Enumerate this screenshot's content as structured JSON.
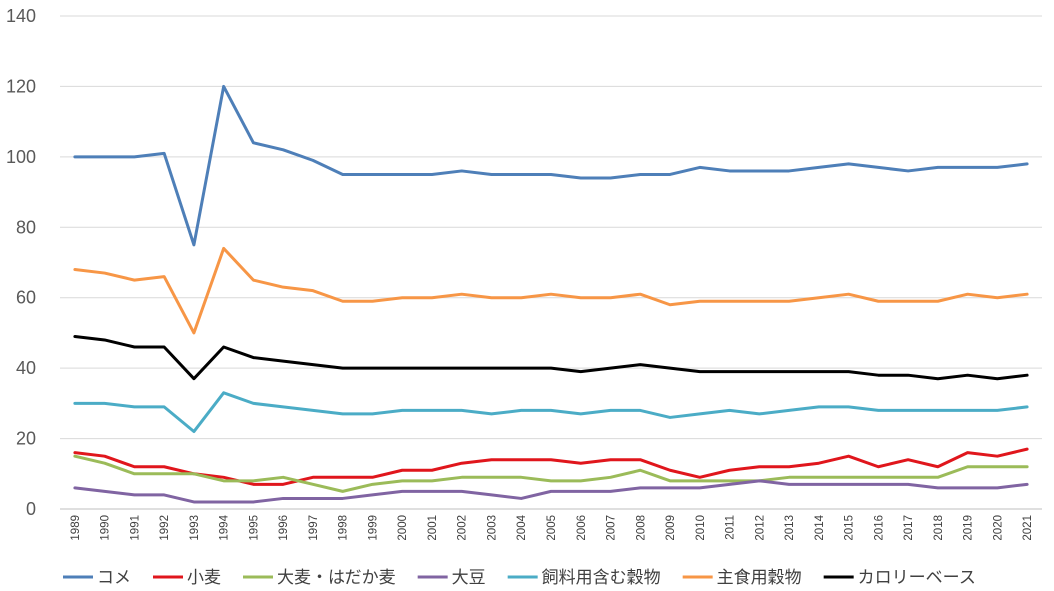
{
  "chart_data": {
    "type": "line",
    "title": "",
    "xlabel": "",
    "ylabel": "",
    "ylim": [
      0,
      140
    ],
    "yticks": [
      "0",
      "20",
      "40",
      "60",
      "80",
      "100",
      "120",
      "140"
    ],
    "grid": "horizontal",
    "legend_position": "bottom",
    "x": [
      "1989",
      "1990",
      "1991",
      "1992",
      "1993",
      "1994",
      "1995",
      "1996",
      "1997",
      "1998",
      "1999",
      "2000",
      "2001",
      "2002",
      "2003",
      "2004",
      "2005",
      "2006",
      "2007",
      "2008",
      "2009",
      "2010",
      "2011",
      "2012",
      "2013",
      "2014",
      "2015",
      "2016",
      "2017",
      "2018",
      "2019",
      "2020",
      "2021"
    ],
    "series": [
      {
        "name": "コメ",
        "color": "#4E7FB8",
        "values": [
          100,
          100,
          100,
          101,
          75,
          120,
          104,
          102,
          99,
          95,
          95,
          95,
          95,
          96,
          95,
          95,
          95,
          94,
          94,
          95,
          95,
          97,
          96,
          96,
          96,
          97,
          98,
          97,
          96,
          97,
          97,
          97,
          98
        ]
      },
      {
        "name": "小麦",
        "color": "#E0161C",
        "values": [
          16,
          15,
          12,
          12,
          10,
          9,
          7,
          7,
          9,
          9,
          9,
          11,
          11,
          13,
          14,
          14,
          14,
          13,
          14,
          14,
          11,
          9,
          11,
          12,
          12,
          13,
          15,
          12,
          14,
          12,
          16,
          15,
          17
        ]
      },
      {
        "name": "大麦・はだか麦",
        "color": "#9BBB59",
        "values": [
          15,
          13,
          10,
          10,
          10,
          8,
          8,
          9,
          7,
          5,
          7,
          8,
          8,
          9,
          9,
          9,
          8,
          8,
          9,
          11,
          8,
          8,
          8,
          8,
          9,
          9,
          9,
          9,
          9,
          9,
          12,
          12,
          12
        ]
      },
      {
        "name": "大豆",
        "color": "#8064A2",
        "values": [
          6,
          5,
          4,
          4,
          2,
          2,
          2,
          3,
          3,
          3,
          4,
          5,
          5,
          5,
          4,
          3,
          5,
          5,
          5,
          6,
          6,
          6,
          7,
          8,
          7,
          7,
          7,
          7,
          7,
          6,
          6,
          6,
          7
        ]
      },
      {
        "name": "飼料用含む穀物",
        "color": "#4BACC6",
        "values": [
          30,
          30,
          29,
          29,
          22,
          33,
          30,
          29,
          28,
          27,
          27,
          28,
          28,
          28,
          27,
          28,
          28,
          27,
          28,
          28,
          26,
          27,
          28,
          27,
          28,
          29,
          29,
          28,
          28,
          28,
          28,
          28,
          29
        ]
      },
      {
        "name": "主食用穀物",
        "color": "#F79646",
        "values": [
          68,
          67,
          65,
          66,
          50,
          74,
          65,
          63,
          62,
          59,
          59,
          60,
          60,
          61,
          60,
          60,
          61,
          60,
          60,
          61,
          58,
          59,
          59,
          59,
          59,
          60,
          61,
          59,
          59,
          59,
          61,
          60,
          61
        ]
      },
      {
        "name": "カロリーベース",
        "color": "#000000",
        "values": [
          49,
          48,
          46,
          46,
          37,
          46,
          43,
          42,
          41,
          40,
          40,
          40,
          40,
          40,
          40,
          40,
          40,
          39,
          40,
          41,
          40,
          39,
          39,
          39,
          39,
          39,
          39,
          38,
          38,
          37,
          38,
          37,
          38
        ]
      }
    ]
  }
}
